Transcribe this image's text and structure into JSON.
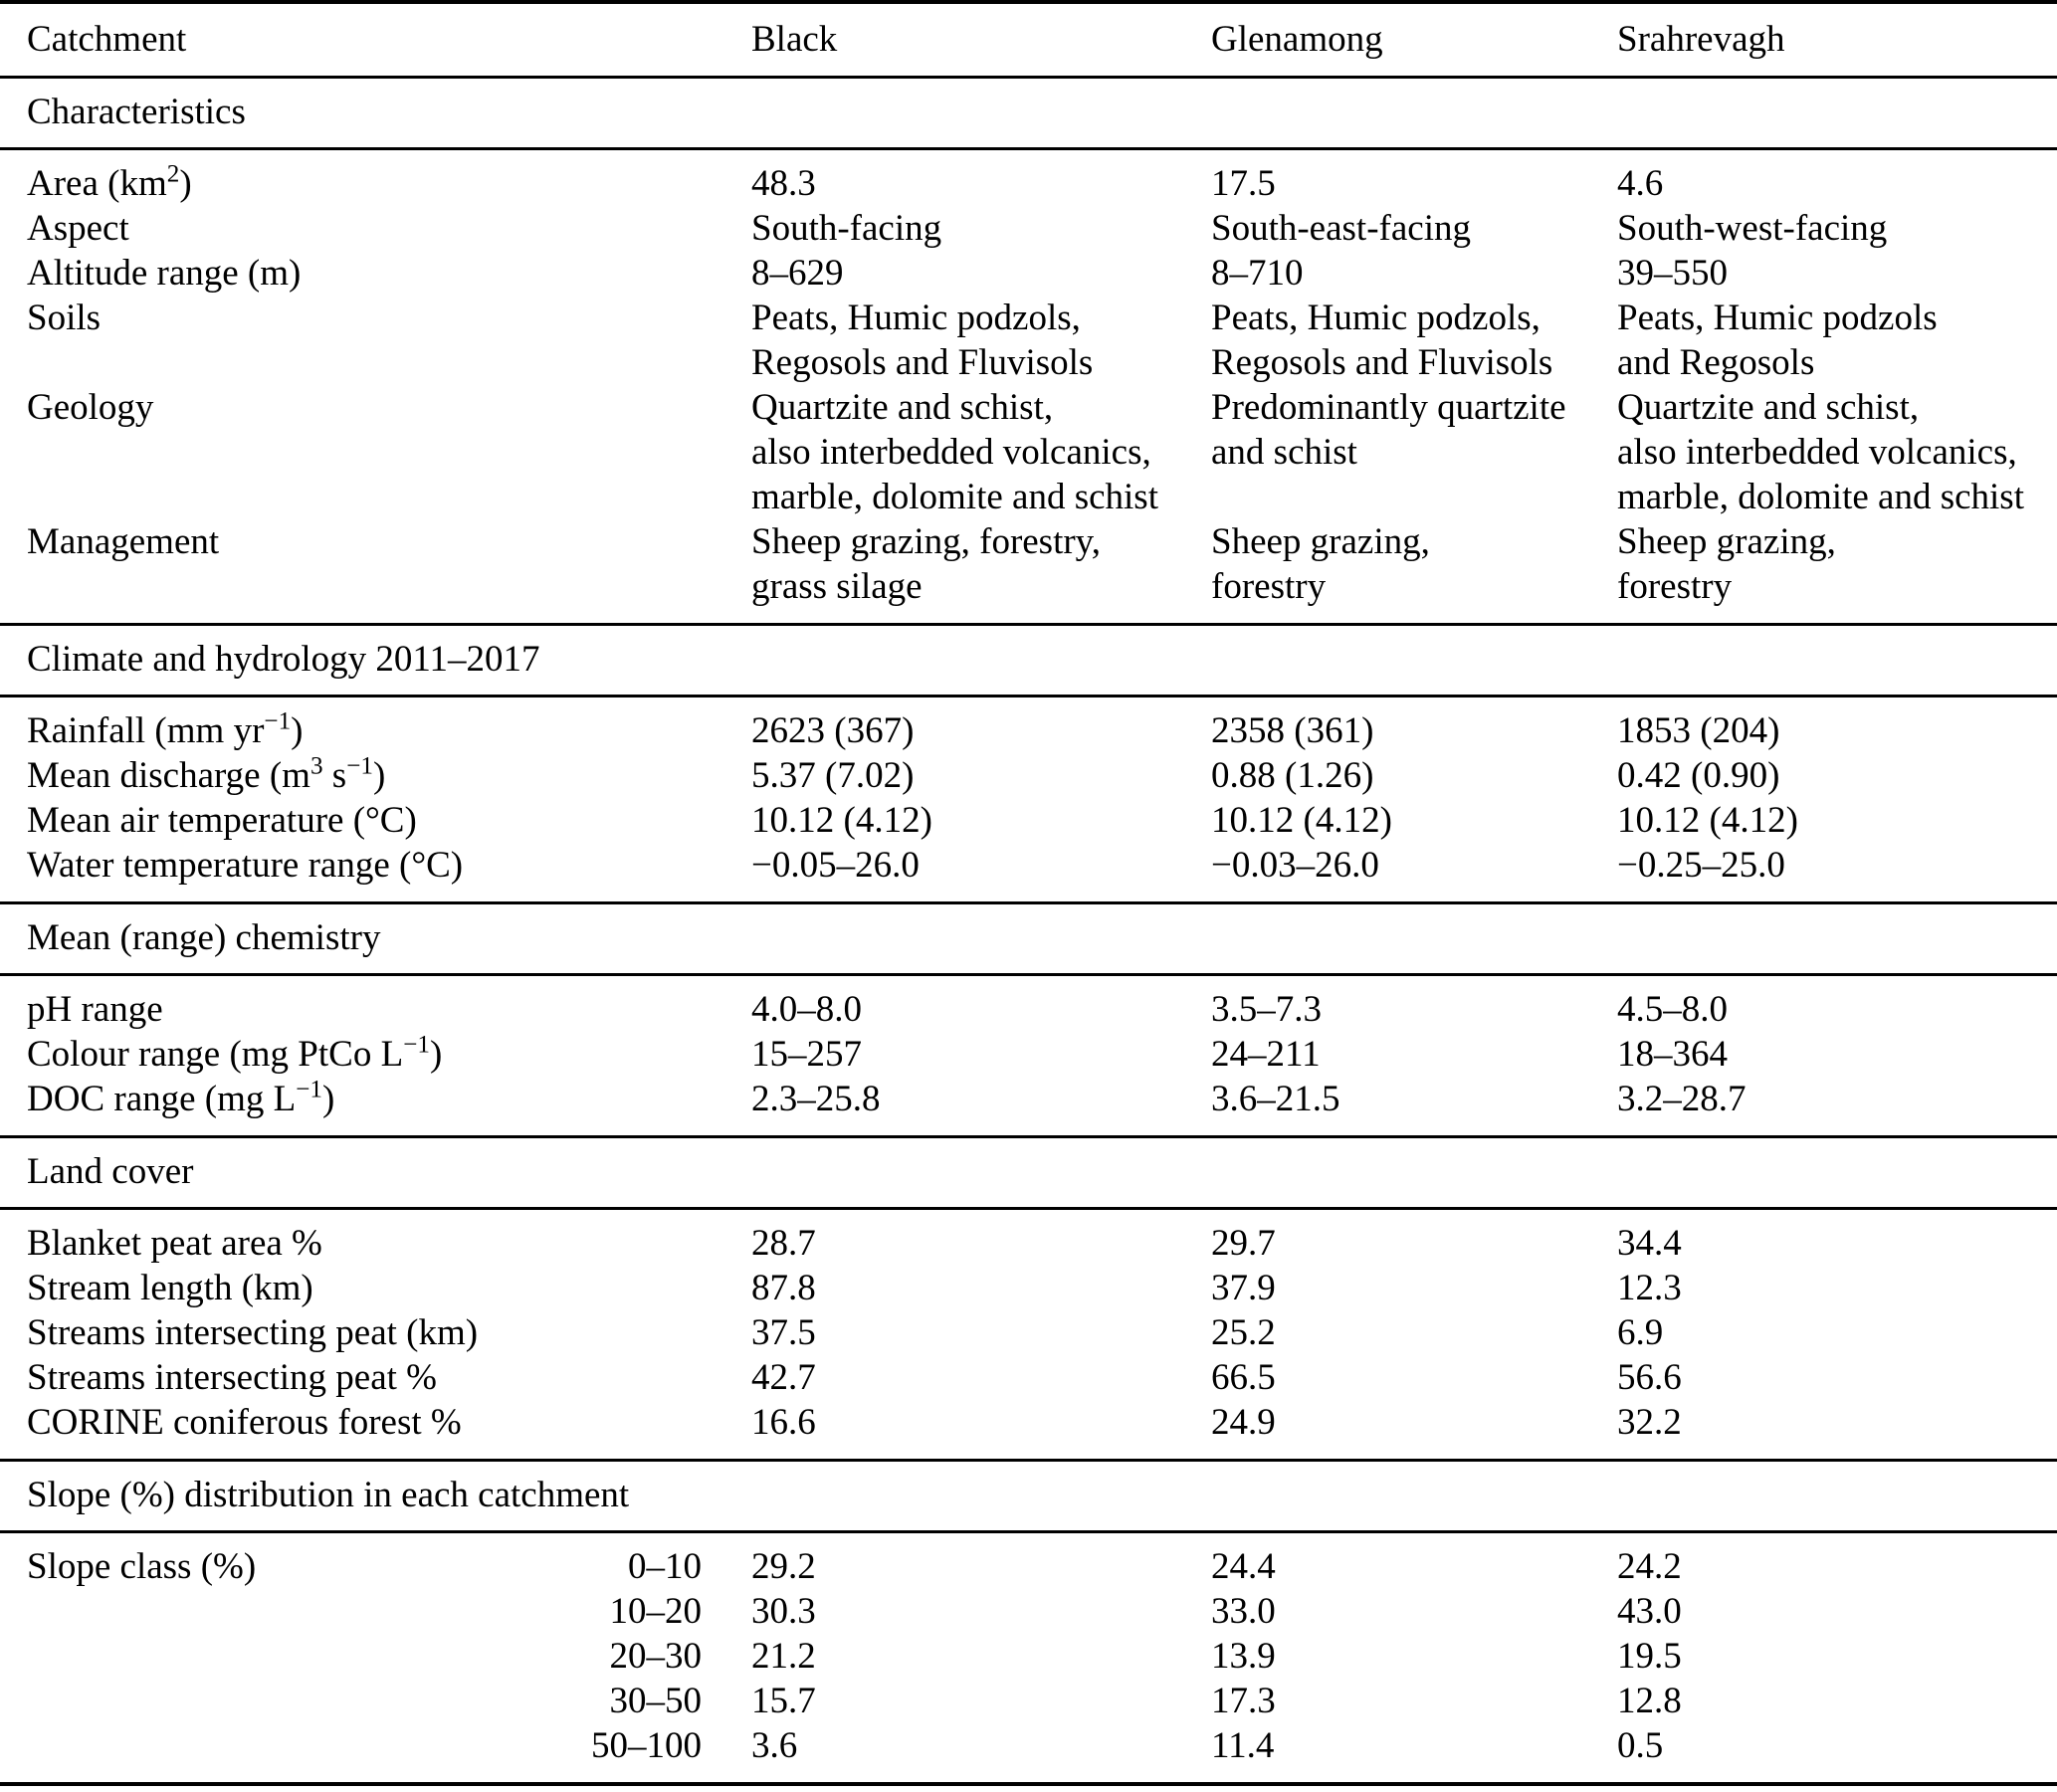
{
  "table": {
    "header": {
      "catchment": "Catchment",
      "black": "Black",
      "glenamong": "Glenamong",
      "srahrevagh": "Srahrevagh"
    },
    "sections": [
      {
        "title": "Characteristics",
        "rows": [
          {
            "label": "Area (km^{2})",
            "values": [
              "48.3",
              "17.5",
              "4.6"
            ]
          },
          {
            "label": "Aspect",
            "values": [
              "South-facing",
              "South-east-facing",
              "South-west-facing"
            ]
          },
          {
            "label": "Altitude range (m)",
            "values": [
              "8–629",
              "8–710",
              "39–550"
            ]
          },
          {
            "label": "Soils",
            "values": [
              "Peats, Humic podzols,\nRegosols and Fluvisols",
              "Peats, Humic podzols,\nRegosols and Fluvisols",
              "Peats, Humic podzols\nand Regosols"
            ]
          },
          {
            "label": "Geology",
            "values": [
              "Quartzite and schist,\nalso interbedded volcanics,\nmarble, dolomite and schist",
              "Predominantly quartzite\nand schist",
              "Quartzite and schist,\nalso interbedded volcanics,\nmarble, dolomite and schist"
            ]
          },
          {
            "label": "Management",
            "values": [
              "Sheep grazing, forestry,\ngrass silage",
              "Sheep grazing,\nforestry",
              "Sheep grazing,\nforestry"
            ]
          }
        ]
      },
      {
        "title": "Climate and hydrology 2011–2017",
        "rows": [
          {
            "label": "Rainfall (mm yr^{−1})",
            "values": [
              "2623 (367)",
              "2358 (361)",
              "1853 (204)"
            ]
          },
          {
            "label": "Mean discharge (m^{3} s^{−1})",
            "values": [
              "5.37 (7.02)",
              "0.88 (1.26)",
              "0.42 (0.90)"
            ]
          },
          {
            "label": "Mean air temperature (°C)",
            "values": [
              "10.12 (4.12)",
              "10.12 (4.12)",
              "10.12 (4.12)"
            ]
          },
          {
            "label": "Water temperature range (°C)",
            "values": [
              "−0.05–26.0",
              "−0.03–26.0",
              "−0.25–25.0"
            ]
          }
        ]
      },
      {
        "title": "Mean (range) chemistry",
        "rows": [
          {
            "label": "pH range",
            "values": [
              "4.0–8.0",
              "3.5–7.3",
              "4.5–8.0"
            ]
          },
          {
            "label": "Colour range (mg PtCo L^{−1})",
            "values": [
              "15–257",
              "24–211",
              "18–364"
            ]
          },
          {
            "label": "DOC range (mg L^{−1})",
            "values": [
              "2.3–25.8",
              "3.6–21.5",
              "3.2–28.7"
            ]
          }
        ]
      },
      {
        "title": "Land cover",
        "rows": [
          {
            "label": "Blanket peat area %",
            "values": [
              "28.7",
              "29.7",
              "34.4"
            ]
          },
          {
            "label": "Stream length (km)",
            "values": [
              "87.8",
              "37.9",
              "12.3"
            ]
          },
          {
            "label": "Streams intersecting peat (km)",
            "values": [
              "37.5",
              "25.2",
              "6.9"
            ]
          },
          {
            "label": "Streams intersecting peat %",
            "values": [
              "42.7",
              "66.5",
              "56.6"
            ]
          },
          {
            "label": "CORINE coniferous forest %",
            "values": [
              "16.6",
              "24.9",
              "32.2"
            ]
          }
        ]
      },
      {
        "title": "Slope (%) distribution in each catchment",
        "rows": [
          {
            "label": "Slope class (%)",
            "sublabel": "0–10",
            "values": [
              "29.2",
              "24.4",
              "24.2"
            ]
          },
          {
            "label": "",
            "sublabel": "10–20",
            "values": [
              "30.3",
              "33.0",
              "43.0"
            ]
          },
          {
            "label": "",
            "sublabel": "20–30",
            "values": [
              "21.2",
              "13.9",
              "19.5"
            ]
          },
          {
            "label": "",
            "sublabel": "30–50",
            "values": [
              "15.7",
              "17.3",
              "12.8"
            ]
          },
          {
            "label": "",
            "sublabel": "50–100",
            "values": [
              "3.6",
              "11.4",
              "0.5"
            ]
          }
        ]
      }
    ]
  }
}
